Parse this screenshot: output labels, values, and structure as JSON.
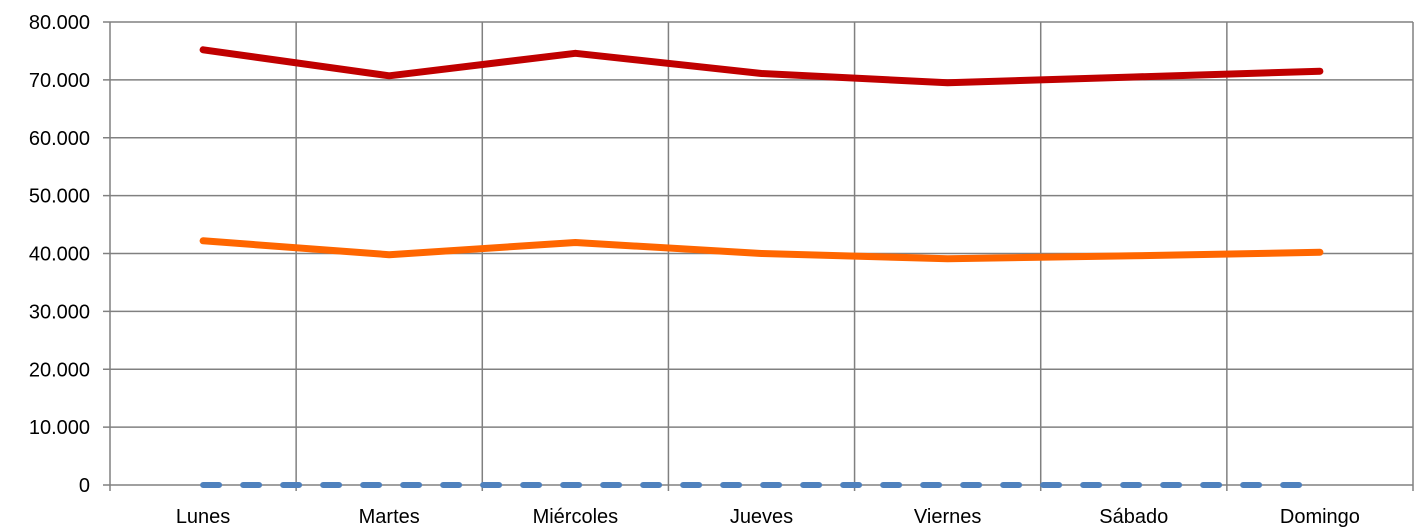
{
  "chart_data": {
    "type": "line",
    "title": "",
    "xlabel": "",
    "ylabel": "",
    "categories": [
      "Lunes",
      "Martes",
      "Miércoles",
      "Jueves",
      "Viernes",
      "Sábado",
      "Domingo"
    ],
    "ylim": [
      0,
      80000
    ],
    "yticks": [
      0,
      10000,
      20000,
      30000,
      40000,
      50000,
      60000,
      70000,
      80000
    ],
    "ytick_labels": [
      "0",
      "10.000",
      "20.000",
      "30.000",
      "40.000",
      "50.000",
      "60.000",
      "70.000",
      "80.000"
    ],
    "grid": true,
    "legend": "none",
    "series": [
      {
        "color": "#C00000",
        "style": "solid",
        "values": [
          75200,
          70700,
          74600,
          71100,
          69500,
          70500,
          71500
        ]
      },
      {
        "color": "#FF6600",
        "style": "solid",
        "values": [
          42200,
          39800,
          41900,
          40000,
          39100,
          39600,
          40200
        ]
      },
      {
        "color": "#4F81BD",
        "style": "dashed",
        "values": [
          0,
          0,
          0,
          0,
          0,
          0,
          0
        ]
      }
    ]
  }
}
